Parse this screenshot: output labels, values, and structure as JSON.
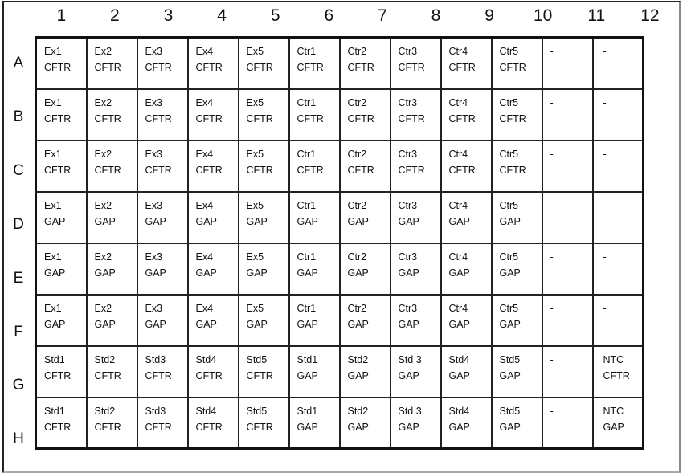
{
  "columns": [
    "1",
    "2",
    "3",
    "4",
    "5",
    "6",
    "7",
    "8",
    "9",
    "10",
    "11",
    "12"
  ],
  "rows": [
    {
      "label": "A",
      "cells": [
        [
          "Ex1",
          "CFTR"
        ],
        [
          "Ex2",
          "CFTR"
        ],
        [
          "Ex3",
          "CFTR"
        ],
        [
          "Ex4",
          "CFTR"
        ],
        [
          "Ex5",
          "CFTR"
        ],
        [
          "Ctr1",
          "CFTR"
        ],
        [
          "Ctr2",
          "CFTR"
        ],
        [
          "Ctr3",
          "CFTR"
        ],
        [
          "Ctr4",
          "CFTR"
        ],
        [
          "Ctr5",
          "CFTR"
        ],
        [
          "-",
          ""
        ],
        [
          "-",
          ""
        ]
      ]
    },
    {
      "label": "B",
      "cells": [
        [
          "Ex1",
          "CFTR"
        ],
        [
          "Ex2",
          "CFTR"
        ],
        [
          "Ex3",
          "CFTR"
        ],
        [
          "Ex4",
          "CFTR"
        ],
        [
          "Ex5",
          "CFTR"
        ],
        [
          "Ctr1",
          "CFTR"
        ],
        [
          "Ctr2",
          "CFTR"
        ],
        [
          "Ctr3",
          "CFTR"
        ],
        [
          "Ctr4",
          "CFTR"
        ],
        [
          "Ctr5",
          "CFTR"
        ],
        [
          "-",
          ""
        ],
        [
          "-",
          ""
        ]
      ]
    },
    {
      "label": "C",
      "cells": [
        [
          "Ex1",
          "CFTR"
        ],
        [
          "Ex2",
          "CFTR"
        ],
        [
          "Ex3",
          "CFTR"
        ],
        [
          "Ex4",
          "CFTR"
        ],
        [
          "Ex5",
          "CFTR"
        ],
        [
          "Ctr1",
          "CFTR"
        ],
        [
          "Ctr2",
          "CFTR"
        ],
        [
          "Ctr3",
          "CFTR"
        ],
        [
          "Ctr4",
          "CFTR"
        ],
        [
          "Ctr5",
          "CFTR"
        ],
        [
          "-",
          ""
        ],
        [
          "-",
          ""
        ]
      ]
    },
    {
      "label": "D",
      "cells": [
        [
          "Ex1",
          "GAP"
        ],
        [
          "Ex2",
          "GAP"
        ],
        [
          "Ex3",
          "GAP"
        ],
        [
          "Ex4",
          "GAP"
        ],
        [
          "Ex5",
          "GAP"
        ],
        [
          "Ctr1",
          "GAP"
        ],
        [
          "Ctr2",
          "GAP"
        ],
        [
          "Ctr3",
          "GAP"
        ],
        [
          "Ctr4",
          "GAP"
        ],
        [
          "Ctr5",
          "GAP"
        ],
        [
          "-",
          ""
        ],
        [
          "-",
          ""
        ]
      ]
    },
    {
      "label": "E",
      "cells": [
        [
          "Ex1",
          "GAP"
        ],
        [
          "Ex2",
          "GAP"
        ],
        [
          "Ex3",
          "GAP"
        ],
        [
          "Ex4",
          "GAP"
        ],
        [
          "Ex5",
          "GAP"
        ],
        [
          "Ctr1",
          "GAP"
        ],
        [
          "Ctr2",
          "GAP"
        ],
        [
          "Ctr3",
          "GAP"
        ],
        [
          "Ctr4",
          "GAP"
        ],
        [
          "Ctr5",
          "GAP"
        ],
        [
          "-",
          ""
        ],
        [
          "-",
          ""
        ]
      ]
    },
    {
      "label": "F",
      "cells": [
        [
          "Ex1",
          "GAP"
        ],
        [
          "Ex2",
          "GAP"
        ],
        [
          "Ex3",
          "GAP"
        ],
        [
          "Ex4",
          "GAP"
        ],
        [
          "Ex5",
          "GAP"
        ],
        [
          "Ctr1",
          "GAP"
        ],
        [
          "Ctr2",
          "GAP"
        ],
        [
          "Ctr3",
          "GAP"
        ],
        [
          "Ctr4",
          "GAP"
        ],
        [
          "Ctr5",
          "GAP"
        ],
        [
          "-",
          ""
        ],
        [
          "-",
          ""
        ]
      ]
    },
    {
      "label": "G",
      "cells": [
        [
          "Std1",
          "CFTR"
        ],
        [
          "Std2",
          "CFTR"
        ],
        [
          "Std3",
          "CFTR"
        ],
        [
          "Std4",
          "CFTR"
        ],
        [
          "Std5",
          "CFTR"
        ],
        [
          "Std1",
          "GAP"
        ],
        [
          "Std2",
          "GAP"
        ],
        [
          "Std 3",
          "GAP"
        ],
        [
          "Std4",
          "GAP"
        ],
        [
          "Std5",
          "GAP"
        ],
        [
          "-",
          ""
        ],
        [
          "NTC",
          "CFTR"
        ]
      ]
    },
    {
      "label": "H",
      "cells": [
        [
          "Std1",
          "CFTR"
        ],
        [
          "Std2",
          "CFTR"
        ],
        [
          "Std3",
          "CFTR"
        ],
        [
          "Std4",
          "CFTR"
        ],
        [
          "Std5",
          "CFTR"
        ],
        [
          "Std1",
          "GAP"
        ],
        [
          "Std2",
          "GAP"
        ],
        [
          "Std 3",
          "GAP"
        ],
        [
          "Std4",
          "GAP"
        ],
        [
          "Std5",
          "GAP"
        ],
        [
          "-",
          ""
        ],
        [
          "NTC",
          "GAP"
        ]
      ]
    }
  ]
}
